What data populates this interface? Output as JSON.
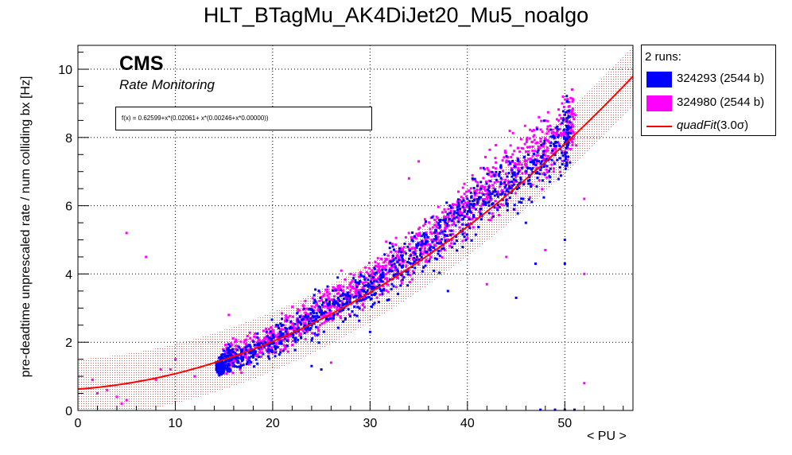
{
  "chart_data": {
    "type": "scatter",
    "title": "HLT_BTagMu_AK4DiJet20_Mu5_noalgo",
    "xlabel": "< PU >",
    "ylabel": "pre-deadtime unprescaled rate / num colliding bx [Hz]",
    "xlim": [
      0,
      57
    ],
    "ylim": [
      0,
      10.7
    ],
    "x_ticks": [
      "0",
      "10",
      "20",
      "30",
      "40",
      "50"
    ],
    "y_ticks": [
      "0",
      "2",
      "4",
      "6",
      "8",
      "10"
    ],
    "grid": true,
    "legend_position": "outside top-right",
    "legend_header": "2 runs:",
    "annotations": {
      "experiment": "CMS",
      "subtitle": "Rate Monitoring",
      "formula": "f(x) = 0.62599+x*(0.02061+ x*(0.00246+x*0.00000))"
    },
    "fit": {
      "name": "quadFit(3.0σ)",
      "name_main": "quadFit",
      "name_suffix": "(3.0σ)",
      "coefficients": [
        0.62599,
        0.02061,
        0.00246
      ],
      "band_halfwidth": 0.87,
      "color": "#ff0000"
    },
    "series": [
      {
        "name": "324293 (2544 b)",
        "color": "#0000ff",
        "trend_points": [
          [
            14.3,
            1.28
          ],
          [
            15,
            1.45
          ],
          [
            16,
            1.55
          ],
          [
            18,
            1.75
          ],
          [
            20,
            2.0
          ],
          [
            22,
            2.3
          ],
          [
            24,
            2.65
          ],
          [
            26,
            3.0
          ],
          [
            28,
            3.3
          ],
          [
            30,
            3.6
          ],
          [
            32,
            4.0
          ],
          [
            34,
            4.4
          ],
          [
            36,
            4.85
          ],
          [
            38,
            5.3
          ],
          [
            40,
            5.7
          ],
          [
            42,
            6.2
          ],
          [
            44,
            6.6
          ],
          [
            46,
            7.0
          ],
          [
            48,
            7.4
          ],
          [
            50,
            7.9
          ],
          [
            50.5,
            8.3
          ]
        ],
        "outliers": [
          [
            14.2,
            1.4
          ],
          [
            14.5,
            1.2
          ],
          [
            14.4,
            1.35
          ],
          [
            33,
            4.0
          ],
          [
            30,
            2.3
          ],
          [
            38,
            3.5
          ],
          [
            47,
            4.3
          ],
          [
            50,
            4.3
          ],
          [
            50,
            5.0
          ],
          [
            45,
            3.3
          ],
          [
            40,
            6.2
          ],
          [
            46,
            5.5
          ],
          [
            47.5,
            0.02
          ],
          [
            49,
            0.02
          ],
          [
            50,
            0.02
          ],
          [
            51,
            0.02
          ],
          [
            25,
            1.2
          ],
          [
            24,
            1.3
          ]
        ]
      },
      {
        "name": "324980 (2544 b)",
        "color": "#ff00ff",
        "trend_points": [
          [
            15,
            1.45
          ],
          [
            16,
            1.6
          ],
          [
            18,
            1.85
          ],
          [
            20,
            2.1
          ],
          [
            22,
            2.4
          ],
          [
            24,
            2.75
          ],
          [
            26,
            3.1
          ],
          [
            28,
            3.45
          ],
          [
            30,
            3.75
          ],
          [
            32,
            4.15
          ],
          [
            34,
            4.55
          ],
          [
            36,
            5.0
          ],
          [
            38,
            5.45
          ],
          [
            40,
            5.9
          ],
          [
            42,
            6.4
          ],
          [
            44,
            6.9
          ],
          [
            46,
            7.4
          ],
          [
            48,
            7.8
          ],
          [
            50,
            8.2
          ],
          [
            51,
            8.5
          ]
        ],
        "outliers": [
          [
            5,
            5.2
          ],
          [
            7,
            4.5
          ],
          [
            1.5,
            0.9
          ],
          [
            2,
            0.5
          ],
          [
            3,
            0.6
          ],
          [
            4,
            0.4
          ],
          [
            4.5,
            0.2
          ],
          [
            5,
            0.3
          ],
          [
            8,
            0.9
          ],
          [
            8.5,
            1.2
          ],
          [
            9.5,
            1.2
          ],
          [
            10,
            1.5
          ],
          [
            12,
            1.0
          ],
          [
            15.5,
            2.8
          ],
          [
            36,
            4.7
          ],
          [
            42,
            3.7
          ],
          [
            44,
            4.5
          ],
          [
            35,
            7.3
          ],
          [
            34,
            6.8
          ],
          [
            52,
            6.2
          ],
          [
            52,
            4.0
          ],
          [
            52,
            0.8
          ],
          [
            48,
            4.7
          ],
          [
            28,
            4.0
          ],
          [
            26,
            1.4
          ]
        ]
      }
    ]
  }
}
